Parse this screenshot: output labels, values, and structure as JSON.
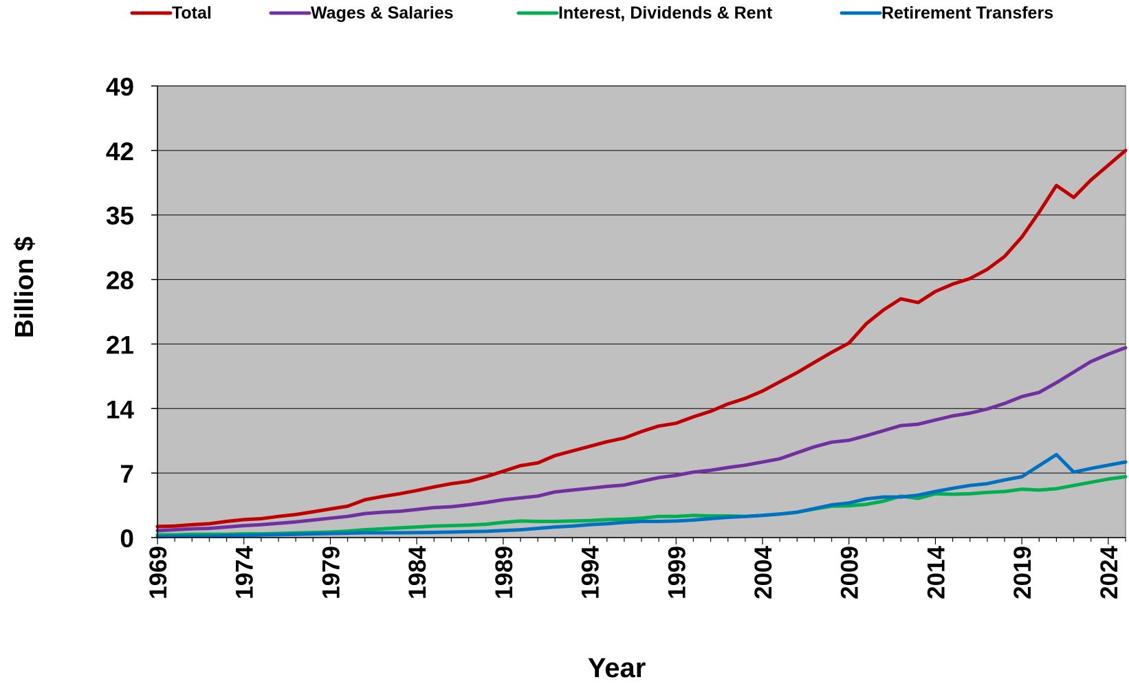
{
  "chart_data": {
    "type": "line",
    "title": "",
    "xlabel": "Year",
    "ylabel": "Billion $",
    "ylim": [
      0,
      49
    ],
    "xlim": [
      1969,
      2025
    ],
    "yticks": [
      "0",
      "7",
      "14",
      "21",
      "28",
      "35",
      "42",
      "49"
    ],
    "xticks": [
      "1969",
      "1974",
      "1979",
      "1984",
      "1989",
      "1994",
      "1999",
      "2004",
      "2009",
      "2014",
      "2019",
      "2024"
    ],
    "grid": "horizontal",
    "plot_background": "#c0c0c0",
    "legend_position": "top",
    "x": [
      1969,
      1970,
      1971,
      1972,
      1973,
      1974,
      1975,
      1976,
      1977,
      1978,
      1979,
      1980,
      1981,
      1982,
      1983,
      1984,
      1985,
      1986,
      1987,
      1988,
      1989,
      1990,
      1991,
      1992,
      1993,
      1994,
      1995,
      1996,
      1997,
      1998,
      1999,
      2000,
      2001,
      2002,
      2003,
      2004,
      2005,
      2006,
      2007,
      2008,
      2009,
      2010,
      2011,
      2012,
      2013,
      2014,
      2015,
      2016,
      2017,
      2018,
      2019,
      2020,
      2021,
      2022,
      2023,
      2024,
      2025
    ],
    "series": [
      {
        "name": "Total",
        "color": "#c00000",
        "values": [
          1.2,
          1.25,
          1.4,
          1.5,
          1.75,
          1.95,
          2.05,
          2.3,
          2.5,
          2.8,
          3.1,
          3.4,
          4.1,
          4.45,
          4.75,
          5.1,
          5.5,
          5.85,
          6.1,
          6.6,
          7.2,
          7.8,
          8.1,
          8.9,
          9.4,
          9.9,
          10.4,
          10.8,
          11.5,
          12.1,
          12.4,
          13.1,
          13.7,
          14.5,
          15.1,
          15.9,
          16.9,
          17.9,
          19.0,
          20.1,
          21.1,
          23.2,
          24.7,
          25.9,
          25.5,
          26.7,
          27.5,
          28.1,
          29.1,
          30.5,
          32.6,
          35.3,
          38.2,
          36.9,
          38.8,
          40.4,
          42.0
        ]
      },
      {
        "name": "Wages & Salaries",
        "color": "#7030a0",
        "values": [
          0.75,
          0.85,
          0.95,
          1.0,
          1.15,
          1.3,
          1.4,
          1.55,
          1.7,
          1.9,
          2.1,
          2.3,
          2.6,
          2.75,
          2.85,
          3.05,
          3.25,
          3.35,
          3.55,
          3.8,
          4.1,
          4.3,
          4.5,
          4.95,
          5.15,
          5.35,
          5.55,
          5.7,
          6.1,
          6.5,
          6.75,
          7.1,
          7.3,
          7.6,
          7.85,
          8.2,
          8.55,
          9.2,
          9.85,
          10.35,
          10.55,
          11.05,
          11.6,
          12.15,
          12.3,
          12.75,
          13.2,
          13.5,
          13.95,
          14.55,
          15.3,
          15.75,
          16.8,
          17.95,
          19.1,
          19.9,
          20.6
        ]
      },
      {
        "name": "Interest, Dividends & Rent",
        "color": "#00b050",
        "values": [
          0.3,
          0.3,
          0.35,
          0.35,
          0.35,
          0.4,
          0.4,
          0.45,
          0.5,
          0.55,
          0.6,
          0.7,
          0.85,
          0.95,
          1.05,
          1.15,
          1.25,
          1.3,
          1.35,
          1.45,
          1.65,
          1.8,
          1.75,
          1.75,
          1.8,
          1.85,
          1.95,
          2.0,
          2.1,
          2.3,
          2.3,
          2.4,
          2.35,
          2.35,
          2.3,
          2.4,
          2.55,
          2.75,
          3.1,
          3.4,
          3.45,
          3.6,
          3.95,
          4.5,
          4.25,
          4.75,
          4.7,
          4.75,
          4.9,
          5.0,
          5.25,
          5.15,
          5.3,
          5.65,
          6.0,
          6.35,
          6.6
        ]
      },
      {
        "name": "Retirement Transfers",
        "color": "#0070c0",
        "values": [
          0.1,
          0.12,
          0.14,
          0.16,
          0.2,
          0.24,
          0.28,
          0.32,
          0.36,
          0.4,
          0.44,
          0.48,
          0.52,
          0.52,
          0.52,
          0.54,
          0.56,
          0.6,
          0.64,
          0.68,
          0.76,
          0.85,
          1.0,
          1.15,
          1.25,
          1.4,
          1.5,
          1.65,
          1.75,
          1.75,
          1.8,
          1.9,
          2.05,
          2.2,
          2.3,
          2.4,
          2.55,
          2.75,
          3.15,
          3.55,
          3.75,
          4.2,
          4.4,
          4.4,
          4.6,
          5.0,
          5.35,
          5.65,
          5.85,
          6.25,
          6.6,
          7.8,
          9.0,
          7.1,
          7.5,
          7.85,
          8.2
        ]
      }
    ]
  }
}
